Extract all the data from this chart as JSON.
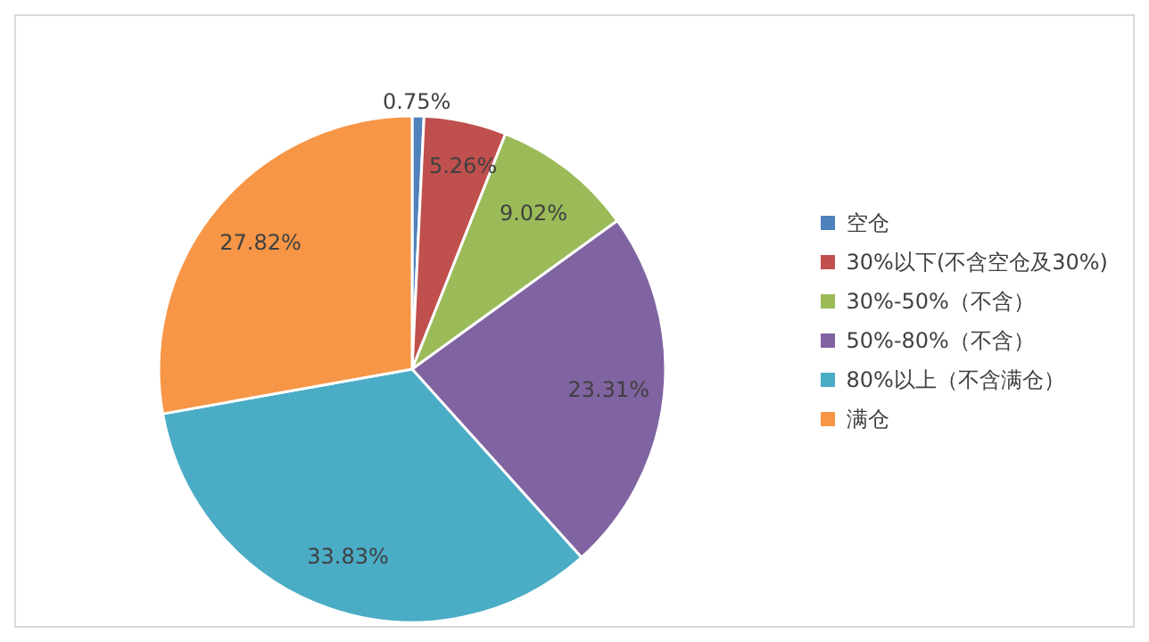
{
  "chart_data": {
    "type": "pie",
    "categories": [
      "空仓",
      "30%以下(不含空仓及30%)",
      "30%-50%（不含）",
      "50%-80%（不含）",
      "80%以上（不含满仓）",
      "满仓"
    ],
    "values": [
      0.75,
      5.26,
      9.02,
      23.31,
      33.83,
      27.82
    ],
    "colors": [
      "#4f81bd",
      "#c0504d",
      "#9bbb59",
      "#8064a2",
      "#4bacc6",
      "#f79646"
    ],
    "value_labels": [
      "0.75%",
      "5.26%",
      "9.02%",
      "23.31%",
      "33.83%",
      "27.82%"
    ],
    "legend": "right"
  }
}
